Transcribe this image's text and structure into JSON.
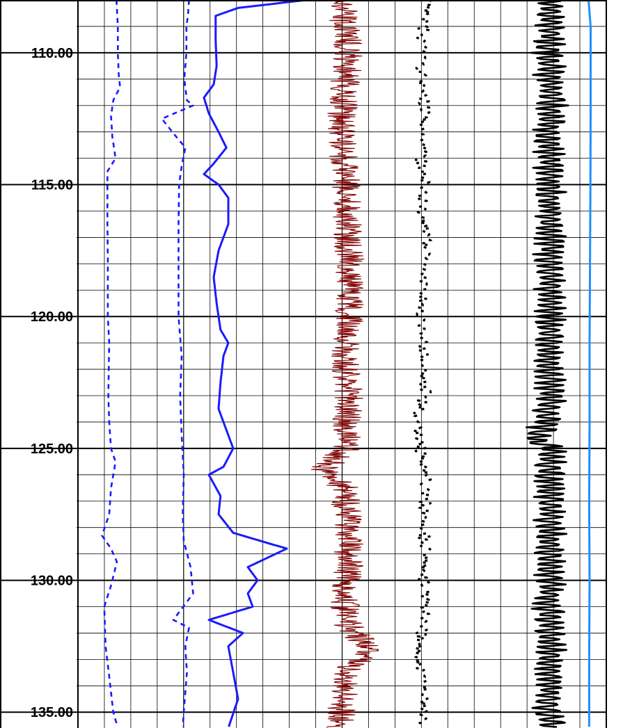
{
  "chart_data": {
    "type": "line",
    "title": "",
    "depth_axis": {
      "range": [
        108.0,
        135.6
      ],
      "orientation": "vertical, increasing downward",
      "major_ticks": [
        110,
        115,
        120,
        125,
        130,
        135
      ],
      "tick_labels": [
        "110.00",
        "115.00",
        "120.00",
        "125.00",
        "130.00",
        "135.00"
      ],
      "minor_tick_step": 1
    },
    "grid": true,
    "tracks": [
      {
        "name": "",
        "color": "#1a1aff",
        "style": "dashed",
        "points": [
          [
            108.0,
            0.42
          ],
          [
            109.0,
            0.45
          ],
          [
            110.0,
            0.45
          ],
          [
            110.8,
            0.47
          ],
          [
            111.3,
            0.5
          ],
          [
            111.8,
            0.35
          ],
          [
            112.4,
            0.3
          ],
          [
            113.2,
            0.33
          ],
          [
            114.0,
            0.4
          ],
          [
            114.5,
            0.22
          ],
          [
            115.0,
            0.22
          ],
          [
            116.5,
            0.22
          ],
          [
            118.0,
            0.23
          ],
          [
            120.0,
            0.23
          ],
          [
            121.0,
            0.26
          ],
          [
            122.0,
            0.25
          ],
          [
            123.0,
            0.24
          ],
          [
            124.0,
            0.26
          ],
          [
            125.0,
            0.3
          ],
          [
            125.5,
            0.4
          ],
          [
            126.5,
            0.3
          ],
          [
            127.5,
            0.26
          ],
          [
            128.3,
            0.1
          ],
          [
            128.8,
            0.3
          ],
          [
            129.3,
            0.43
          ],
          [
            130.2,
            0.3
          ],
          [
            131.0,
            0.15
          ],
          [
            132.5,
            0.18
          ],
          [
            133.5,
            0.25
          ],
          [
            135.0,
            0.35
          ],
          [
            135.6,
            0.45
          ]
        ]
      },
      {
        "name": "",
        "color": "#1a1aff",
        "style": "dashed",
        "points": [
          [
            108.0,
            0.62
          ],
          [
            108.6,
            0.6
          ],
          [
            109.0,
            0.57
          ],
          [
            110.0,
            0.57
          ],
          [
            111.0,
            0.53
          ],
          [
            111.8,
            0.58
          ],
          [
            112.0,
            0.7
          ],
          [
            112.5,
            0.1
          ],
          [
            113.0,
            0.3
          ],
          [
            113.6,
            0.55
          ],
          [
            114.3,
            0.48
          ],
          [
            115.0,
            0.43
          ],
          [
            116.5,
            0.42
          ],
          [
            118.0,
            0.42
          ],
          [
            120.0,
            0.42
          ],
          [
            121.5,
            0.48
          ],
          [
            123.0,
            0.45
          ],
          [
            124.5,
            0.48
          ],
          [
            126.0,
            0.52
          ],
          [
            127.5,
            0.5
          ],
          [
            128.5,
            0.52
          ],
          [
            129.5,
            0.65
          ],
          [
            130.5,
            0.7
          ],
          [
            131.5,
            0.32
          ],
          [
            131.8,
            0.62
          ],
          [
            132.5,
            0.55
          ],
          [
            133.5,
            0.58
          ],
          [
            135.0,
            0.52
          ],
          [
            135.6,
            0.5
          ]
        ]
      },
      {
        "name": "",
        "color": "#1a1aff",
        "style": "solid",
        "points": [
          [
            108.0,
            1.0
          ],
          [
            108.3,
            0.3
          ],
          [
            108.6,
            0.07
          ],
          [
            109.5,
            0.07
          ],
          [
            110.5,
            0.08
          ],
          [
            111.2,
            0.05
          ],
          [
            111.7,
            -0.05
          ],
          [
            112.3,
            0.0
          ],
          [
            113.0,
            0.1
          ],
          [
            113.6,
            0.18
          ],
          [
            114.2,
            0.05
          ],
          [
            114.6,
            -0.05
          ],
          [
            115.0,
            0.1
          ],
          [
            115.5,
            0.2
          ],
          [
            116.5,
            0.2
          ],
          [
            117.5,
            0.1
          ],
          [
            118.5,
            0.05
          ],
          [
            119.5,
            0.08
          ],
          [
            120.5,
            0.12
          ],
          [
            121.0,
            0.2
          ],
          [
            121.5,
            0.15
          ],
          [
            122.5,
            0.12
          ],
          [
            123.5,
            0.1
          ],
          [
            124.5,
            0.2
          ],
          [
            125.0,
            0.25
          ],
          [
            125.7,
            0.15
          ],
          [
            126.0,
            0.0
          ],
          [
            126.8,
            0.12
          ],
          [
            127.5,
            0.1
          ],
          [
            128.2,
            0.25
          ],
          [
            128.8,
            0.8
          ],
          [
            129.5,
            0.4
          ],
          [
            130.0,
            0.5
          ],
          [
            130.5,
            0.4
          ],
          [
            131.0,
            0.45
          ],
          [
            131.5,
            0.0
          ],
          [
            132.0,
            0.35
          ],
          [
            132.5,
            0.2
          ],
          [
            133.5,
            0.25
          ],
          [
            134.5,
            0.3
          ],
          [
            135.6,
            0.2
          ]
        ]
      },
      {
        "name": "",
        "color": "#800000",
        "style": "solid-noisy",
        "points": [
          [
            108.0,
            0.4
          ],
          [
            109.0,
            0.5
          ],
          [
            110.0,
            0.55
          ],
          [
            111.0,
            0.5
          ],
          [
            112.0,
            0.45
          ],
          [
            113.0,
            0.42
          ],
          [
            114.0,
            0.46
          ],
          [
            115.0,
            0.5
          ],
          [
            116.0,
            0.52
          ],
          [
            117.0,
            0.55
          ],
          [
            118.0,
            0.58
          ],
          [
            119.0,
            0.55
          ],
          [
            120.0,
            0.56
          ],
          [
            121.0,
            0.52
          ],
          [
            122.0,
            0.5
          ],
          [
            123.0,
            0.55
          ],
          [
            124.0,
            0.53
          ],
          [
            125.0,
            0.5
          ],
          [
            125.8,
            0.1
          ],
          [
            126.5,
            0.48
          ],
          [
            127.5,
            0.52
          ],
          [
            128.5,
            0.55
          ],
          [
            129.5,
            0.56
          ],
          [
            130.5,
            0.5
          ],
          [
            131.5,
            0.48
          ],
          [
            132.7,
            0.95
          ],
          [
            133.5,
            0.45
          ],
          [
            134.5,
            0.45
          ],
          [
            135.6,
            0.4
          ]
        ]
      },
      {
        "name": "",
        "color": "#000000",
        "style": "dotted-bold",
        "points": [
          [
            108.0,
            0.7
          ],
          [
            109.0,
            0.45
          ],
          [
            110.0,
            0.4
          ],
          [
            111.0,
            0.38
          ],
          [
            112.0,
            0.5
          ],
          [
            113.0,
            0.45
          ],
          [
            114.0,
            0.4
          ],
          [
            115.0,
            0.5
          ],
          [
            116.0,
            0.45
          ],
          [
            117.0,
            0.55
          ],
          [
            118.0,
            0.5
          ],
          [
            119.0,
            0.48
          ],
          [
            120.0,
            0.42
          ],
          [
            121.0,
            0.45
          ],
          [
            122.0,
            0.4
          ],
          [
            123.0,
            0.52
          ],
          [
            124.0,
            0.3
          ],
          [
            125.0,
            0.4
          ],
          [
            126.0,
            0.55
          ],
          [
            127.0,
            0.5
          ],
          [
            128.0,
            0.45
          ],
          [
            129.0,
            0.5
          ],
          [
            130.0,
            0.45
          ],
          [
            131.0,
            0.55
          ],
          [
            132.0,
            0.4
          ],
          [
            133.0,
            0.3
          ],
          [
            134.0,
            0.5
          ],
          [
            135.0,
            0.45
          ],
          [
            135.6,
            0.45
          ]
        ]
      },
      {
        "name": "",
        "color": "#000000",
        "style": "solid-wavy",
        "points": [
          [
            108.0,
            0.55
          ],
          [
            109.0,
            0.5
          ],
          [
            110.0,
            0.45
          ],
          [
            111.0,
            0.5
          ],
          [
            112.0,
            0.55
          ],
          [
            113.0,
            0.45
          ],
          [
            114.0,
            0.5
          ],
          [
            115.0,
            0.5
          ],
          [
            116.0,
            0.5
          ],
          [
            117.0,
            0.5
          ],
          [
            118.0,
            0.5
          ],
          [
            119.0,
            0.5
          ],
          [
            120.0,
            0.48
          ],
          [
            121.0,
            0.5
          ],
          [
            122.0,
            0.45
          ],
          [
            123.0,
            0.55
          ],
          [
            124.0,
            0.4
          ],
          [
            124.7,
            0.05
          ],
          [
            125.0,
            0.5
          ],
          [
            126.0,
            0.5
          ],
          [
            127.0,
            0.5
          ],
          [
            128.0,
            0.5
          ],
          [
            129.0,
            0.5
          ],
          [
            130.0,
            0.5
          ],
          [
            131.0,
            0.45
          ],
          [
            132.0,
            0.5
          ],
          [
            133.0,
            0.5
          ],
          [
            134.0,
            0.5
          ],
          [
            135.0,
            0.45
          ],
          [
            135.6,
            0.55
          ]
        ]
      },
      {
        "name": "",
        "color": "#1e90ff",
        "style": "solid",
        "points": [
          [
            108.0,
            0.35
          ],
          [
            109.0,
            0.45
          ],
          [
            112.0,
            0.45
          ],
          [
            115.0,
            0.44
          ],
          [
            118.0,
            0.42
          ],
          [
            121.0,
            0.4
          ],
          [
            124.0,
            0.4
          ],
          [
            127.0,
            0.38
          ],
          [
            130.0,
            0.4
          ],
          [
            133.0,
            0.38
          ],
          [
            135.6,
            0.38
          ]
        ]
      }
    ]
  }
}
